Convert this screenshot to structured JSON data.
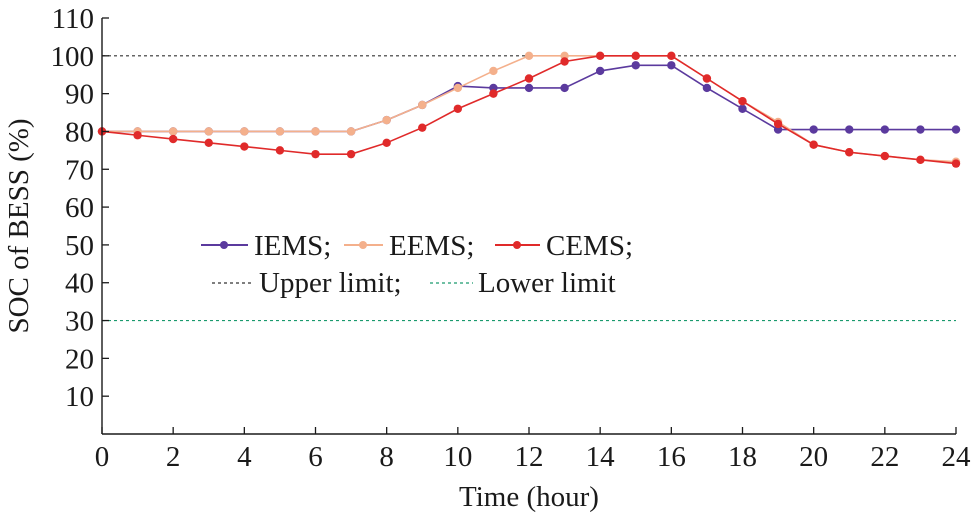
{
  "chart_data": {
    "type": "line",
    "xlabel": "Time (hour)",
    "ylabel": "SOC of BESS (%)",
    "xlim": [
      0,
      24
    ],
    "ylim": [
      0,
      110
    ],
    "x_ticks": [
      0,
      2,
      4,
      6,
      8,
      10,
      12,
      14,
      16,
      18,
      20,
      22,
      24
    ],
    "y_ticks": [
      10,
      20,
      30,
      40,
      50,
      60,
      70,
      80,
      90,
      100,
      110
    ],
    "grid": false,
    "legend_position": "center-left",
    "series": [
      {
        "name": "IEMS;",
        "color": "#5b3a9e",
        "x": [
          0,
          1,
          2,
          3,
          4,
          5,
          6,
          7,
          8,
          9,
          10,
          11,
          12,
          13,
          14,
          15,
          16,
          17,
          18,
          19,
          20,
          21,
          22,
          23,
          24
        ],
        "values": [
          80,
          80,
          80,
          80,
          80,
          80,
          80,
          80,
          83,
          87,
          92,
          91.5,
          91.5,
          91.5,
          96,
          97.5,
          97.5,
          91.5,
          86,
          80.5,
          80.5,
          80.5,
          80.5,
          80.5,
          80.5
        ]
      },
      {
        "name": "EEMS;",
        "color": "#f4b08c",
        "x": [
          0,
          1,
          2,
          3,
          4,
          5,
          6,
          7,
          8,
          9,
          10,
          11,
          12,
          13,
          14,
          15,
          16,
          17,
          18,
          19,
          20,
          21,
          22,
          23,
          24
        ],
        "values": [
          80,
          80,
          80,
          80,
          80,
          80,
          80,
          80,
          83,
          87,
          91.5,
          96,
          100,
          100,
          100,
          100,
          100,
          94,
          88,
          82.5,
          76.5,
          74.5,
          73.5,
          72.5,
          72
        ]
      },
      {
        "name": "CEMS;",
        "color": "#e02a2a",
        "x": [
          0,
          1,
          2,
          3,
          4,
          5,
          6,
          7,
          8,
          9,
          10,
          11,
          12,
          13,
          14,
          15,
          16,
          17,
          18,
          19,
          20,
          21,
          22,
          23,
          24
        ],
        "values": [
          80,
          79,
          78,
          77,
          76,
          75,
          74,
          74,
          77,
          81,
          86,
          90,
          94,
          98.5,
          100,
          100,
          100,
          94,
          88,
          82,
          76.5,
          74.5,
          73.5,
          72.5,
          71.5
        ]
      }
    ],
    "reference_lines": [
      {
        "name": "Upper limit;",
        "y": 100,
        "color": "#333333"
      },
      {
        "name": "Lower limit",
        "y": 30,
        "color": "#1a9a6e"
      }
    ]
  }
}
